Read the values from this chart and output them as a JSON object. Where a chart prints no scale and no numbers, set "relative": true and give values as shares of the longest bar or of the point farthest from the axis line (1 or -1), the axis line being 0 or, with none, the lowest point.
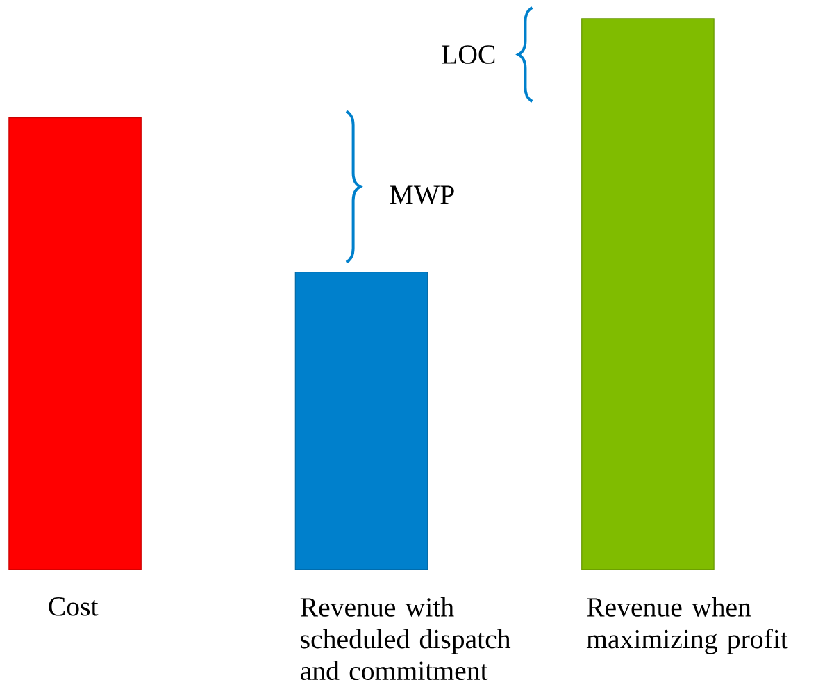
{
  "chart_data": {
    "type": "bar",
    "relative": true,
    "categories": [
      "Cost",
      "Revenue with scheduled dispatch and commitment",
      "Revenue when maximizing profit"
    ],
    "values": [
      0.82,
      0.54,
      1
    ],
    "colors": [
      "#ff0000",
      "#0080cc",
      "#80bc00"
    ],
    "annotations": [
      "MWP",
      "LOC"
    ]
  }
}
